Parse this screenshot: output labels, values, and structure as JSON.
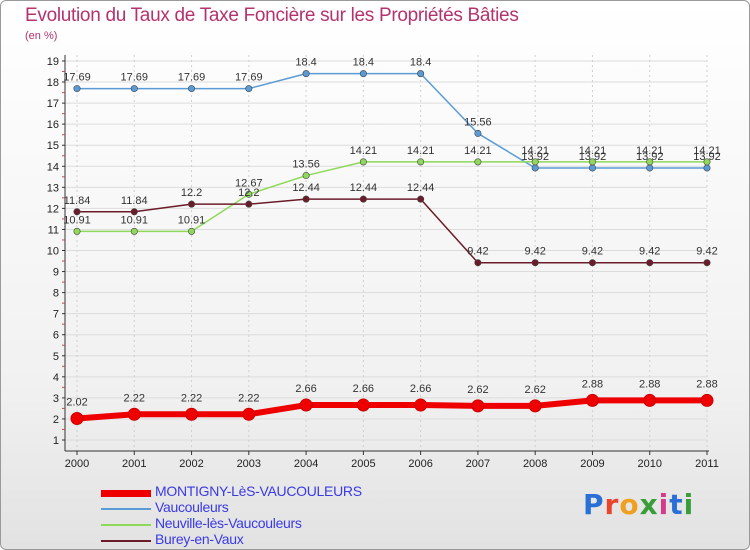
{
  "title": "Evolution du Taux de Taxe Foncière sur les Propriétés Bâties",
  "subtitle": "(en %)",
  "logo": {
    "text": "Proxiti",
    "letter_colors": [
      "#2a6fd6",
      "#e8452c",
      "#f0a020",
      "#3a9d3a",
      "#d63a8a",
      "#2a6fd6",
      "#3a9d3a"
    ]
  },
  "chart_data": {
    "type": "line",
    "title": "Evolution du Taux de Taxe Foncière sur les Propriétés Bâties",
    "subtitle": "(en %)",
    "xlabel": "",
    "ylabel": "",
    "x": [
      "2000",
      "2001",
      "2002",
      "2003",
      "2004",
      "2005",
      "2006",
      "2007",
      "2008",
      "2009",
      "2010",
      "2011"
    ],
    "ylim": [
      1,
      19
    ],
    "yticks": [
      "1",
      "2",
      "3",
      "4",
      "5",
      "6",
      "7",
      "8",
      "9",
      "10",
      "11",
      "12",
      "13",
      "14",
      "15",
      "16",
      "17",
      "18",
      "19"
    ],
    "grid": "horizontal",
    "legend_position": "bottom-left",
    "series": [
      {
        "name": "MONTIGNY-LèS-VAUCOULEURS",
        "color": "#ee0000",
        "values": [
          2.02,
          2.22,
          2.22,
          2.22,
          2.66,
          2.66,
          2.66,
          2.62,
          2.62,
          2.88,
          2.88,
          2.88
        ],
        "labels": [
          "2.02",
          "2.22",
          "2.22",
          "2.22",
          "2.66",
          "2.66",
          "2.66",
          "2.62",
          "2.62",
          "2.88",
          "2.88",
          "2.88"
        ]
      },
      {
        "name": "Vaucouleurs",
        "color": "#5b9bd5",
        "values": [
          17.69,
          17.69,
          17.69,
          17.69,
          18.4,
          18.4,
          18.4,
          15.56,
          13.92,
          13.92,
          13.92,
          13.92
        ],
        "labels": [
          "17.69",
          "17.69",
          "17.69",
          "17.69",
          "18.4",
          "18.4",
          "18.4",
          "15.56",
          "13.92",
          "13.92",
          "13.92",
          "13.92"
        ]
      },
      {
        "name": "Neuville-lès-Vaucouleurs",
        "color": "#8fd85a",
        "values": [
          10.91,
          10.91,
          10.91,
          12.67,
          13.56,
          14.21,
          14.21,
          14.21,
          14.21,
          14.21,
          14.21,
          14.21
        ],
        "labels": [
          "10.91",
          "10.91",
          "10.91",
          "12.67",
          "13.56",
          "14.21",
          "14.21",
          "14.21",
          "14.21",
          "14.21",
          "14.21",
          "14.21"
        ]
      },
      {
        "name": "Burey-en-Vaux",
        "color": "#6b1c2a",
        "values": [
          11.84,
          11.84,
          12.2,
          12.2,
          12.44,
          12.44,
          12.44,
          9.42,
          9.42,
          9.42,
          9.42,
          9.42
        ],
        "labels": [
          "11.84",
          "11.84",
          "12.2",
          "12.2",
          "12.44",
          "12.44",
          "12.44",
          "9.42",
          "9.42",
          "9.42",
          "9.42",
          "9.42"
        ]
      }
    ]
  }
}
